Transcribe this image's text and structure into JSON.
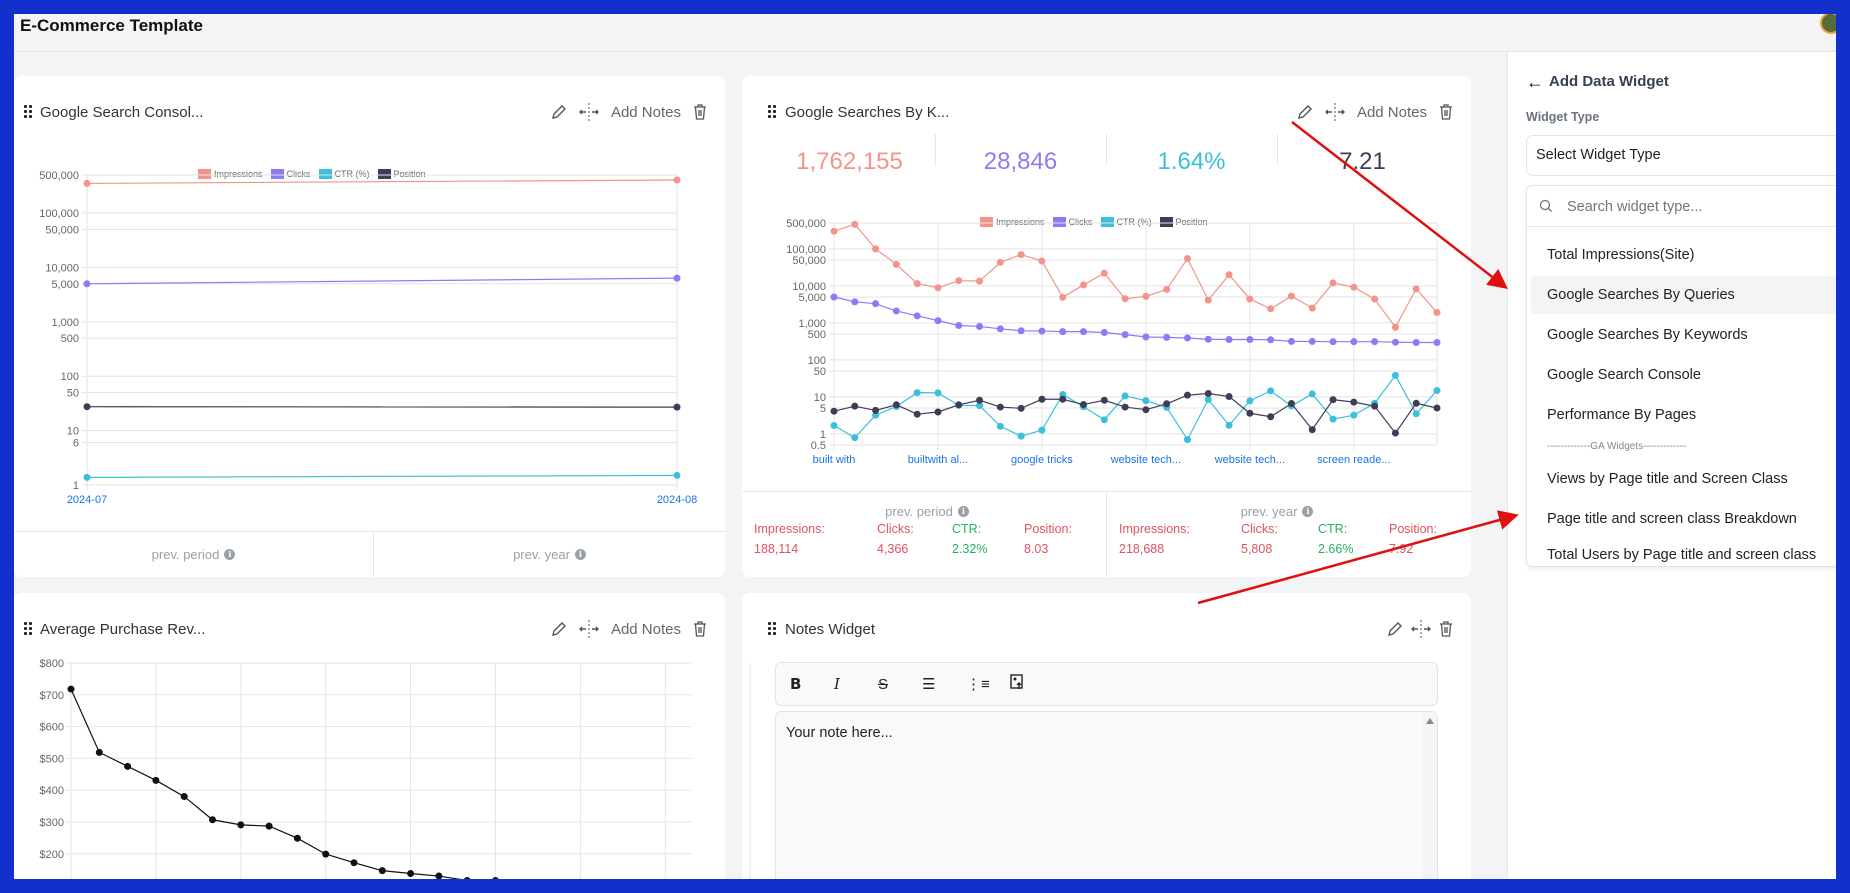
{
  "app": {
    "title": "E-Commerce Template"
  },
  "colors": {
    "impressions": "#f4938a",
    "clicks": "#8b7cf6",
    "ctr": "#3bbfdc",
    "position": "#3f3d56",
    "annotation": "#e01010"
  },
  "widget_actions": {
    "add_notes": "Add Notes",
    "edit_icon": "pencil-icon",
    "move_icon": "resize-horizontal-icon",
    "delete_icon": "trash-icon"
  },
  "widgets": {
    "gsc": {
      "title": "Google Search Consol...",
      "footer": {
        "prev_period": "prev. period",
        "prev_year": "prev. year"
      }
    },
    "keywords": {
      "title": "Google Searches By K...",
      "kpis": [
        "1,762,155",
        "28,846",
        "1.64%",
        "7.21"
      ],
      "footer": {
        "prev_period": {
          "label": "prev. period",
          "impressions_label": "Impressions:",
          "impressions": "188,114",
          "clicks_label": "Clicks:",
          "clicks": "4,366",
          "ctr_label": "CTR:",
          "ctr": "2.32%",
          "position_label": "Position:",
          "position": "8.03"
        },
        "prev_year": {
          "label": "prev. year",
          "impressions_label": "Impressions:",
          "impressions": "218,688",
          "clicks_label": "Clicks:",
          "clicks": "5,808",
          "ctr_label": "CTR:",
          "ctr": "2.66%",
          "position_label": "Position:",
          "position": "7.92"
        }
      }
    },
    "revenue": {
      "title": "Average Purchase Rev..."
    },
    "notes": {
      "title": "Notes Widget",
      "toolbar": [
        "bold-icon",
        "italic-icon",
        "strikethrough-icon",
        "bullet-list-icon",
        "numbered-list-icon",
        "image-upload-icon"
      ],
      "placeholder": "Your note here..."
    }
  },
  "panel": {
    "back_icon": "arrow-left-icon",
    "title": "Add Data Widget",
    "field_label": "Widget Type",
    "select_placeholder": "Select Widget Type",
    "search_placeholder": "Search widget type...",
    "items": [
      "Total Impressions(Site)",
      "Google Searches By Queries",
      "Google Searches By Keywords",
      "Google Search Console",
      "Performance By Pages"
    ],
    "separator": "-------------GA Widgets-------------",
    "ga_items": [
      "Views by Page title and Screen Class",
      "Page title and screen class Breakdown",
      "Total Users by Page title and screen class"
    ],
    "highlighted": "Google Searches By Queries"
  },
  "chart_data": [
    {
      "type": "line",
      "scale": "log",
      "categories": [
        "2024-07",
        "2024-08"
      ],
      "legend": [
        "Impressions",
        "Clicks",
        "CTR (%)",
        "Position"
      ],
      "legend_position": "top",
      "yticks": [
        "500,000",
        "100,000",
        "50,000",
        "10,000",
        "5,000",
        "1,000",
        "500",
        "100",
        "50",
        "10",
        "6",
        "1"
      ],
      "ylim": [
        1,
        500000
      ],
      "grid": true,
      "series": [
        {
          "name": "Impressions",
          "values": [
            350000,
            405000
          ]
        },
        {
          "name": "Clicks",
          "values": [
            5000,
            6350
          ]
        },
        {
          "name": "CTR (%)",
          "values": [
            1.38,
            1.5
          ]
        },
        {
          "name": "Position",
          "values": [
            27.5,
            27
          ]
        }
      ]
    },
    {
      "type": "line",
      "scale": "log",
      "xtick_labels": [
        "built with",
        "builtwith al...",
        "google tricks",
        "website tech...",
        "website tech...",
        "screen reade..."
      ],
      "legend": [
        "Impressions",
        "Clicks",
        "CTR (%)",
        "Position"
      ],
      "legend_position": "top",
      "yticks": [
        "500,000",
        "100,000",
        "50,000",
        "10,000",
        "5,000",
        "1,000",
        "500",
        "100",
        "50",
        "10",
        "5",
        "1",
        "0.5"
      ],
      "ylim": [
        0.5,
        500000
      ],
      "grid": true,
      "series": [
        {
          "name": "Impressions",
          "values": [
            300000,
            460000,
            100000,
            38000,
            11500,
            8900,
            13800,
            13400,
            43000,
            70000,
            47000,
            4900,
            10600,
            22000,
            4500,
            5200,
            8000,
            55000,
            4100,
            20000,
            4400,
            2400,
            5300,
            2500,
            12000,
            9200,
            4400,
            760,
            8300,
            1900
          ]
        },
        {
          "name": "Clicks",
          "values": [
            5000,
            3700,
            3300,
            2100,
            1550,
            1150,
            850,
            800,
            690,
            610,
            600,
            580,
            580,
            550,
            480,
            415,
            405,
            390,
            360,
            355,
            355,
            350,
            315,
            315,
            310,
            310,
            310,
            300,
            295,
            295
          ]
        },
        {
          "name": "CTR (%)",
          "values": [
            1.68,
            0.79,
            3.2,
            5.5,
            13,
            12.8,
            5.9,
            5.8,
            1.6,
            0.87,
            1.26,
            11.6,
            5.4,
            2.4,
            10.6,
            7.9,
            5.2,
            0.7,
            8.5,
            1.7,
            7.8,
            14.5,
            5.7,
            12,
            2.5,
            3.2,
            6.7,
            38,
            3.5,
            14.8
          ]
        },
        {
          "name": "Position",
          "values": [
            4.1,
            5.6,
            4.3,
            6.1,
            3.4,
            3.9,
            6.1,
            8.1,
            5.3,
            4.9,
            8.6,
            8.6,
            6.2,
            8.1,
            5.3,
            4.5,
            6.5,
            11.1,
            12.3,
            10.2,
            3.6,
            2.9,
            6.6,
            1.3,
            8.4,
            7.2,
            5.6,
            1.05,
            6.7,
            5.0
          ]
        }
      ]
    },
    {
      "type": "line",
      "yticks": [
        "$800",
        "$700",
        "$600",
        "$500",
        "$400",
        "$300",
        "$200"
      ],
      "ylim": [
        0,
        800
      ],
      "grid": true,
      "series": [
        {
          "values": [
            718,
            519,
            475,
            431,
            380,
            307,
            291,
            287,
            249,
            199,
            172,
            147,
            138,
            130,
            116,
            116
          ]
        }
      ]
    }
  ]
}
